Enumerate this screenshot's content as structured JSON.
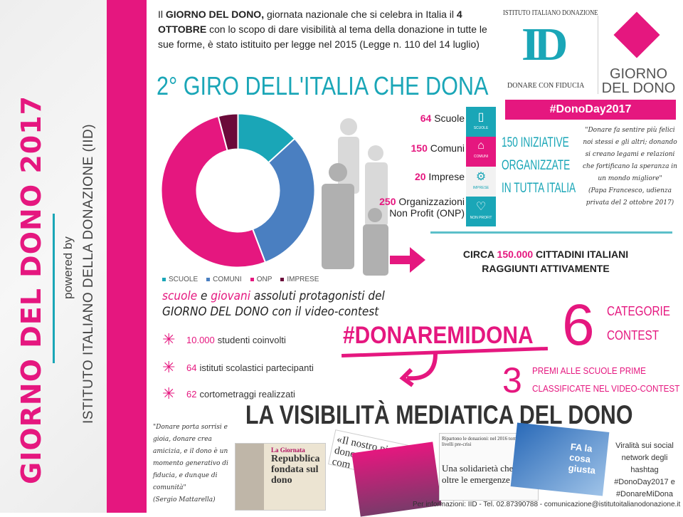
{
  "colors": {
    "pink": "#e5177f",
    "teal": "#1aa6b7",
    "blue": "#4a7fc1",
    "maroon": "#6b0a3a"
  },
  "sidebar": {
    "title": "GIORNO DEL DONO 2017",
    "powered_by": "powered by",
    "org": "ISTITUTO ITALIANO DELLA DONAZIONE (IID)"
  },
  "intro": {
    "p1": "Il ",
    "b1": "GIORNO DEL DONO,",
    "p2": " giornata nazionale che si celebra in Italia il ",
    "b2": "4 OTTOBRE",
    "p3": " con lo scopo di dare visibilità al tema della donazione in tutte le sue forme, è stato istituito per legge nel 2015 (Legge n. 110 del 14 luglio)"
  },
  "main_title": "2° GIRO DELL'ITALIA CHE DONA",
  "logo": {
    "institute": "ISTITUTO ITALIANO DONAZIONE",
    "id_letters": "ID",
    "tagline": "DONARE CON FIDUCIA",
    "event_line1": "GIORNO",
    "event_line2": "DEL DONO",
    "hashtag": "#DonoDay2017"
  },
  "chart_data": {
    "type": "pie",
    "style": "donut",
    "categories": [
      "SCUOLE",
      "COMUNI",
      "ONP",
      "IMPRESE"
    ],
    "values": [
      64,
      150,
      250,
      20
    ],
    "colors": [
      "#1aa6b7",
      "#4a7fc1",
      "#e5177f",
      "#6b0a3a"
    ],
    "legend": "bottom"
  },
  "stats": [
    {
      "num": "64",
      "label": "Scuole",
      "icon": "book-icon",
      "icon_label": "SCUOLE"
    },
    {
      "num": "150",
      "label": "Comuni",
      "icon": "building-icon",
      "icon_label": "COMUNI"
    },
    {
      "num": "20",
      "label": "Imprese",
      "icon": "gears-icon",
      "icon_label": "IMPRESE"
    },
    {
      "num": "250",
      "label": "Organizzazioni Non Profit (ONP)",
      "icon": "heart-icon",
      "icon_label": "NON PROFIT"
    }
  ],
  "initiatives": {
    "l1": "150 INIZIATIVE",
    "l2": "ORGANIZZATE",
    "l3": "IN TUTTA ITALIA"
  },
  "papa_quote": {
    "text": "\"Donare fa sentire più felici noi stessi e gli altri; donando si creano legami e relazioni che fortificano la speranza in un mondo migliore\"",
    "source": "(Papa Francesco, udienza privata del 2 ottobre 2017)"
  },
  "citizens": {
    "pre": "CIRCA ",
    "num": "150.000",
    "post": " CITTADINI ITALIANI",
    "line2": "RAGGIUNTI ATTIVAMENTE"
  },
  "contest": {
    "w1": "scuole",
    "t1": " e ",
    "w2": "giovani",
    "t2": " assoluti protagonisti del",
    "line2": "GIORNO DEL DONO con il video-contest"
  },
  "bullets": [
    {
      "num": "10.000",
      "text": "studenti coinvolti"
    },
    {
      "num": "64",
      "text": "istituti scolastici partecipanti"
    },
    {
      "num": "62",
      "text": "cortometraggi realizzati"
    }
  ],
  "hashtag": "#DONAREMIDONA",
  "categories": {
    "num": "6",
    "l1": "CATEGORIE",
    "l2": "CONTEST"
  },
  "prizes": {
    "num": "3",
    "l1": "PREMI ALLE SCUOLE PRIME",
    "l2": "CLASSIFICATE NEL VIDEO-CONTEST"
  },
  "media_title": "LA VISIBILITÀ MEDIATICA DEL DONO",
  "mattarella_quote": {
    "text": "\"Donare porta sorrisi e gioia, donare crea amicizia, e il dono è un momento generativo di fiducia, e dunque di comunità\"",
    "source": "(Sergio Mattarella)"
  },
  "clippings": {
    "c1_head": "La Giornata",
    "c1_title": "Repubblica fondata sul dono",
    "c2_title": "«Il nostro piano dono ricevu da com",
    "c3_head": "Ripartono le donazioni: nel 2016 tornate ai livelli pre-crisi",
    "c3_title": "Una solidarietà che va oltre le emergenze",
    "c4_title": "FA la cosa giusta"
  },
  "viral": {
    "text": "Viralità sui social network degli hashtag",
    "h1": "#DonoDay2017 e",
    "h2": "#DonareMiDona"
  },
  "footer": "Per informazioni: IID - Tel. 02.87390788 - comunicazione@istitutoitalianodonazione.it"
}
